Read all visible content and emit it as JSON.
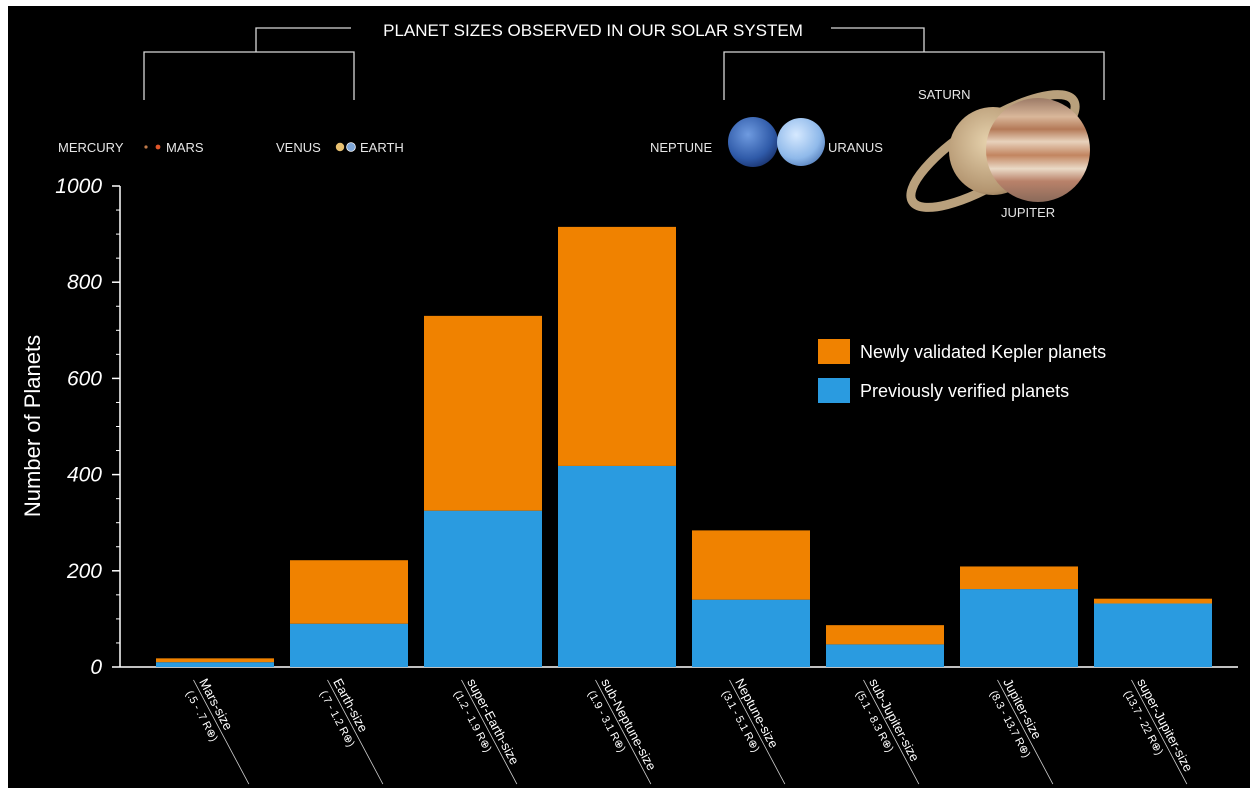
{
  "header": {
    "title": "PLANET SIZES OBSERVED IN OUR SOLAR SYSTEM",
    "planets": {
      "mercury": "MERCURY",
      "mars": "MARS",
      "venus": "VENUS",
      "earth": "EARTH",
      "neptune": "NEPTUNE",
      "uranus": "URANUS",
      "saturn": "SATURN",
      "jupiter": "JUPITER"
    }
  },
  "colors": {
    "background": "#000000",
    "newly_validated": "#f08200",
    "previously_verified": "#2a9be0",
    "mercury": "#c07a4a",
    "mars": "#e0562a",
    "venus": "#e8c070",
    "earth": "#7fa7d8",
    "neptune": "#3f6fbf",
    "uranus": "#9cc4ef",
    "saturn": "#c9a97a",
    "jupiter": "#d49a6a"
  },
  "chart_data": {
    "type": "bar",
    "stacked": true,
    "ylabel": "Number of Planets",
    "ylim": [
      0,
      1000
    ],
    "yticks": [
      "0",
      "200",
      "400",
      "600",
      "800",
      "1000"
    ],
    "grid": false,
    "legend_position": "right",
    "categories": [
      {
        "name": "Mars-size",
        "range": "(.5 - .7 R⊕)"
      },
      {
        "name": "Earth-size",
        "range": "(.7 - 1.2 R⊕)"
      },
      {
        "name": "super-Earth-size",
        "range": "(1.2 - 1.9 R⊕)"
      },
      {
        "name": "sub-Neptune-size",
        "range": "(1.9 - 3.1 R⊕)"
      },
      {
        "name": "Neptune-size",
        "range": "(3.1 - 5.1 R⊕)"
      },
      {
        "name": "sub-Jupiter-size",
        "range": "(5.1 - 8.3 R⊕)"
      },
      {
        "name": "Jupiter-size",
        "range": "(8.3 - 13.7 R⊕)"
      },
      {
        "name": "super-Jupiter-size",
        "range": "(13.7 - 22 R⊕)"
      }
    ],
    "series": [
      {
        "name": "Previously verified planets",
        "values": [
          10,
          90,
          325,
          418,
          140,
          47,
          162,
          132
        ]
      },
      {
        "name": "Newly validated Kepler planets",
        "values": [
          8,
          132,
          405,
          497,
          144,
          40,
          47,
          10
        ]
      }
    ],
    "legend": [
      "Newly validated Kepler planets",
      "Previously verified planets"
    ]
  }
}
